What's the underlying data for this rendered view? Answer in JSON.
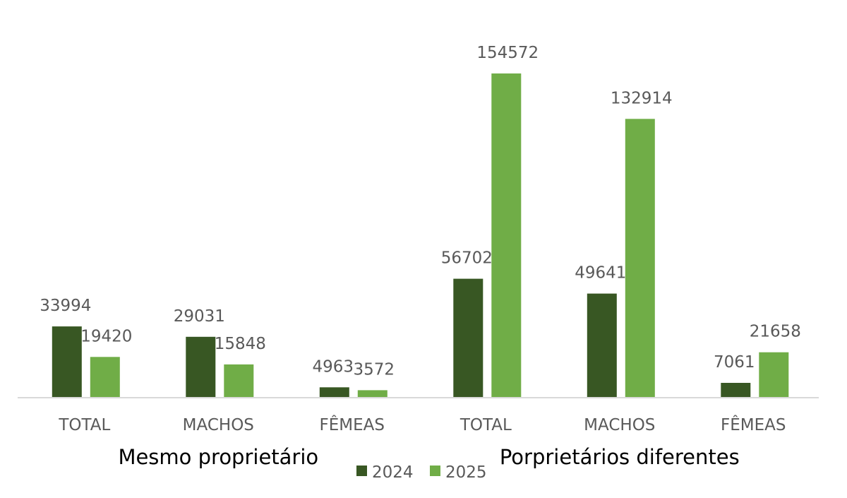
{
  "chart_data": {
    "type": "bar",
    "title": "",
    "xlabel": "",
    "ylabel": "",
    "ylim": [
      0,
      160000
    ],
    "grid": false,
    "legend_position": "bottom",
    "groups": [
      "Mesmo proprietário",
      "Porprietários diferentes"
    ],
    "categories": [
      "TOTAL",
      "MACHOS",
      "FÊMEAS",
      "TOTAL",
      "MACHOS",
      "FÊMEAS"
    ],
    "category_group": [
      0,
      0,
      0,
      1,
      1,
      1
    ],
    "series": [
      {
        "name": "2024",
        "color": "#385723",
        "values": [
          33994,
          29031,
          4963,
          56702,
          49641,
          7061
        ]
      },
      {
        "name": "2025",
        "color": "#70ad47",
        "values": [
          19420,
          15848,
          3572,
          154572,
          132914,
          21658
        ]
      }
    ],
    "data_labels": [
      [
        "33994",
        "29031",
        "4963",
        "56702",
        "49641",
        "7061"
      ],
      [
        "19420",
        "15848",
        "3572",
        "154572",
        "132914",
        "21658"
      ]
    ]
  }
}
